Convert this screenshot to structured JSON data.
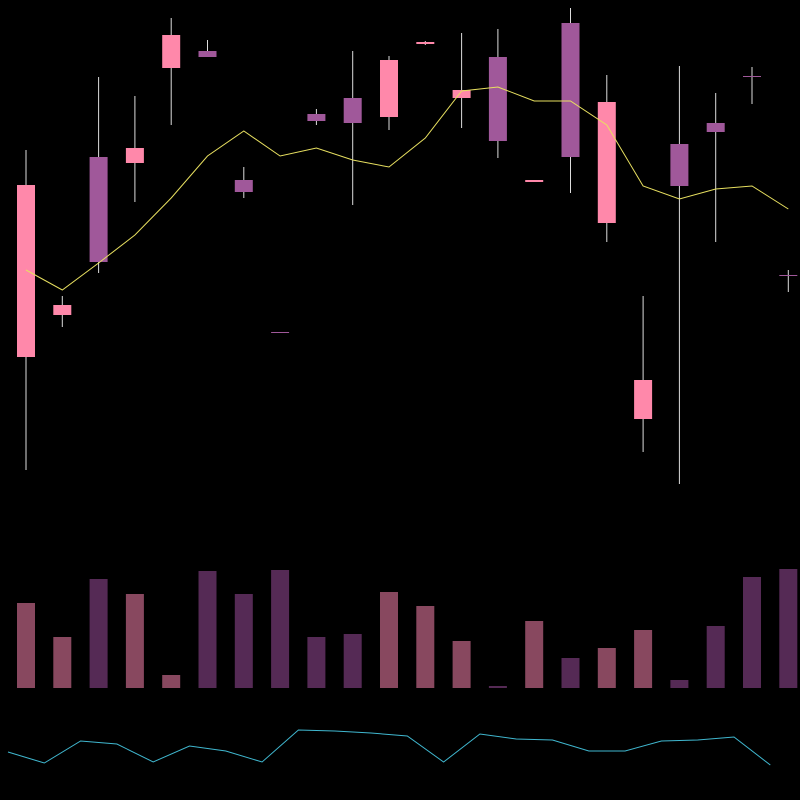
{
  "chart_data": [
    {
      "type": "candlestick",
      "categories": [
        null,
        null,
        null,
        null,
        null,
        null,
        null,
        null,
        null,
        null,
        null,
        null,
        null,
        null,
        null,
        null,
        null,
        null,
        null,
        null,
        null,
        null
      ],
      "open": [
        443,
        485,
        643,
        637,
        732,
        749,
        620,
        468,
        686,
        702,
        683,
        756,
        702,
        743,
        618,
        777,
        577,
        381,
        656,
        677,
        724,
        525
      ],
      "high": [
        650,
        504,
        723,
        704,
        782,
        760,
        633,
        468,
        691,
        749,
        744,
        759,
        767,
        771,
        620,
        792,
        725,
        504,
        734,
        707,
        733,
        530
      ],
      "low": [
        330,
        473,
        527,
        598,
        675,
        743,
        602,
        468,
        675,
        595,
        670,
        755,
        672,
        642,
        618,
        607,
        558,
        348,
        316,
        558,
        696,
        508
      ],
      "close": [
        615,
        495,
        538,
        652,
        765,
        743,
        608,
        468,
        679,
        677,
        740,
        758,
        710,
        659,
        620,
        643,
        698,
        420,
        614,
        668,
        724,
        525
      ],
      "up_color": "#ff88aa",
      "down_color": "#a0589a",
      "series": [
        {
          "color": "#e8e060",
          "values": [
            530,
            510,
            537,
            565,
            602,
            644,
            669,
            644,
            652,
            640,
            633,
            662,
            709,
            713,
            699,
            699,
            675,
            614,
            601,
            611,
            614,
            591
          ]
        }
      ],
      "ylim": [
        0,
        800
      ]
    },
    {
      "type": "bar",
      "categories": [
        null,
        null,
        null,
        null,
        null,
        null,
        null,
        null,
        null,
        null,
        null,
        null,
        null,
        null,
        null,
        null,
        null,
        null,
        null,
        null,
        null,
        null
      ],
      "values": [
        85,
        51,
        109,
        94,
        13,
        117,
        94,
        118,
        51,
        54,
        96,
        82,
        47,
        2,
        67,
        30,
        40,
        58,
        8,
        62,
        111,
        119
      ],
      "colors": [
        "#88485f",
        "#88485f",
        "#552a55",
        "#88485f",
        "#88485f",
        "#552a55",
        "#552a55",
        "#552a55",
        "#552a55",
        "#552a55",
        "#88485f",
        "#88485f",
        "#88485f",
        "#552a55",
        "#88485f",
        "#552a55",
        "#88485f",
        "#88485f",
        "#552a55",
        "#552a55",
        "#552a55",
        "#552a55"
      ],
      "ylim": [
        0,
        120
      ]
    },
    {
      "type": "line",
      "categories": [
        null,
        null,
        null,
        null,
        null,
        null,
        null,
        null,
        null,
        null,
        null,
        null,
        null,
        null,
        null,
        null,
        null,
        null,
        null,
        null,
        null,
        null
      ],
      "series": [
        {
          "color": "#40b8d0",
          "values": [
            48,
            37,
            59,
            56,
            38,
            54,
            49,
            38,
            70,
            69,
            67,
            64,
            38,
            66,
            61,
            60,
            49,
            49,
            59,
            60,
            63,
            35
          ]
        }
      ],
      "ylim": [
        0,
        100
      ]
    }
  ]
}
